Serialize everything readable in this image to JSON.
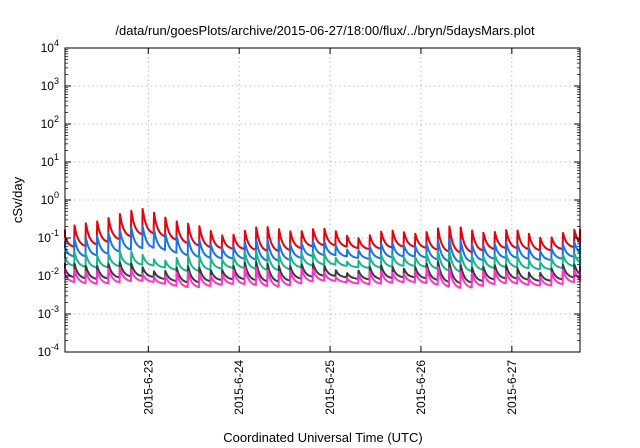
{
  "chart_data": {
    "type": "line",
    "title": "/data/run/goesPlots/archive/2015-06-27/18:00/flux/../bryn/5daysMars.plot",
    "xlabel": "Coordinated Universal Time (UTC)",
    "ylabel": "cSv/day",
    "x_range": [
      "2015-06-22 02:00",
      "2015-06-27 18:00"
    ],
    "x_ticks": [
      "2015-6-23",
      "2015-6-24",
      "2015-6-25",
      "2015-6-26",
      "2015-6-27"
    ],
    "y_scale": "log",
    "ylim": [
      0.0001,
      10000
    ],
    "y_ticks": [
      {
        "base": "10",
        "exp": "4"
      },
      {
        "base": "10",
        "exp": "3"
      },
      {
        "base": "10",
        "exp": "2"
      },
      {
        "base": "10",
        "exp": "1"
      },
      {
        "base": "10",
        "exp": "0"
      },
      {
        "base": "10",
        "exp": "-1"
      },
      {
        "base": "10",
        "exp": "-2"
      },
      {
        "base": "10",
        "exp": "-3"
      },
      {
        "base": "10",
        "exp": "-4"
      }
    ],
    "grid": true,
    "pattern": "sawtooth, about 8 cycles per day",
    "series": [
      {
        "color": "#e8000b",
        "trough": 0.05,
        "peak": 0.15,
        "max_peak_value": 0.6,
        "max_peak_time": "2015-06-22 22:00"
      },
      {
        "color": "#1a73e8",
        "trough": 0.028,
        "peak": 0.07,
        "max_peak_value": 0.21,
        "max_peak_time": "2015-06-22 22:00"
      },
      {
        "color": "#1bb58c",
        "trough": 0.016,
        "peak": 0.035
      },
      {
        "color": "#3a3a3a",
        "trough": 0.008,
        "peak": 0.018
      },
      {
        "color": "#ff33cc",
        "trough": 0.006,
        "peak": 0.013
      }
    ]
  }
}
